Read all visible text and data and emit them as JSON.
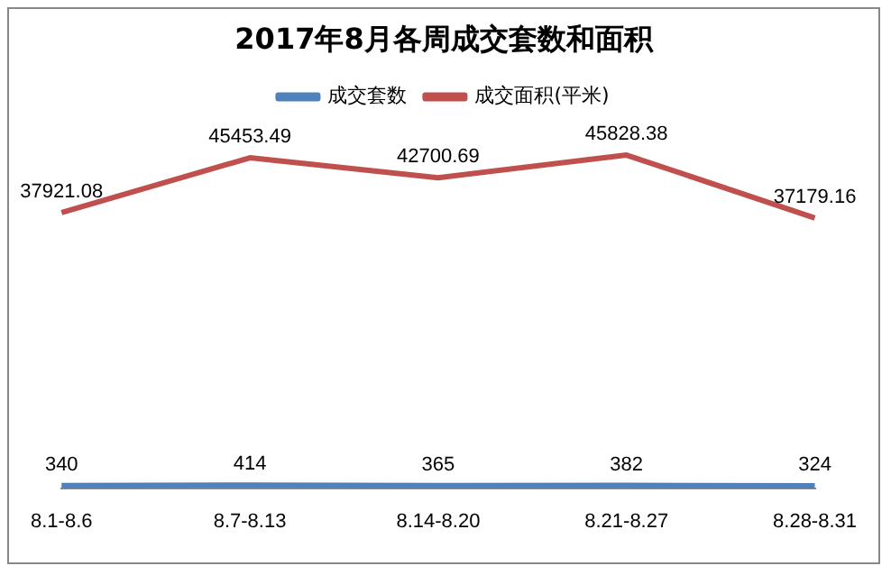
{
  "chart_data": {
    "type": "line",
    "title": "2017年8月各周成交套数和面积",
    "categories": [
      "8.1-8.6",
      "8.7-8.13",
      "8.14-8.20",
      "8.21-8.27",
      "8.28-8.31"
    ],
    "series": [
      {
        "name": "成交套数",
        "color": "#4f81bd",
        "values": [
          340,
          414,
          365,
          382,
          324
        ]
      },
      {
        "name": "成交面积(平米)",
        "color": "#c0504d",
        "values": [
          37921.08,
          45453.49,
          42700.69,
          45828.38,
          37179.16
        ]
      }
    ],
    "tick_labels": "x",
    "grid": false,
    "legend": "top",
    "marker": "none",
    "data_labels": true
  }
}
